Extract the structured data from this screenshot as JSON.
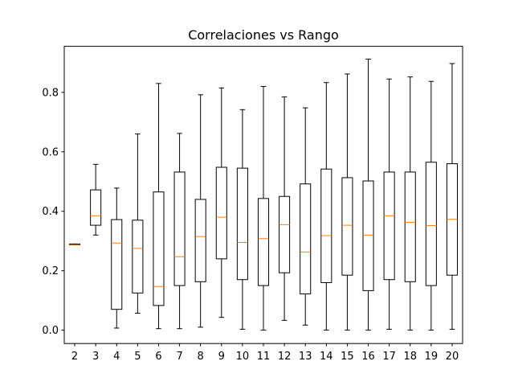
{
  "chart_data": {
    "type": "box",
    "title": "Correlaciones vs Rango",
    "xlabel": "",
    "ylabel": "",
    "ylim": [
      -0.045,
      0.955
    ],
    "yticks": [
      0.0,
      0.2,
      0.4,
      0.6,
      0.8
    ],
    "ytick_labels": [
      "0.0",
      "0.2",
      "0.4",
      "0.6",
      "0.8"
    ],
    "grid": false,
    "legend": "none",
    "colors": {
      "box": "#000000",
      "median": "#ff7f0e",
      "background": "#ffffff"
    },
    "categories": [
      "2",
      "3",
      "4",
      "5",
      "6",
      "7",
      "8",
      "9",
      "10",
      "11",
      "12",
      "13",
      "14",
      "15",
      "16",
      "17",
      "18",
      "19",
      "20"
    ],
    "boxes": [
      {
        "category": "2",
        "whislo": 0.287,
        "q1": 0.287,
        "med": 0.288,
        "q3": 0.29,
        "whishi": 0.29
      },
      {
        "category": "3",
        "whislo": 0.32,
        "q1": 0.353,
        "med": 0.385,
        "q3": 0.472,
        "whishi": 0.558
      },
      {
        "category": "4",
        "whislo": 0.007,
        "q1": 0.07,
        "med": 0.293,
        "q3": 0.372,
        "whishi": 0.478
      },
      {
        "category": "5",
        "whislo": 0.057,
        "q1": 0.125,
        "med": 0.275,
        "q3": 0.37,
        "whishi": 0.66
      },
      {
        "category": "6",
        "whislo": 0.005,
        "q1": 0.083,
        "med": 0.147,
        "q3": 0.465,
        "whishi": 0.83
      },
      {
        "category": "7",
        "whislo": 0.005,
        "q1": 0.15,
        "med": 0.247,
        "q3": 0.532,
        "whishi": 0.662
      },
      {
        "category": "8",
        "whislo": 0.01,
        "q1": 0.163,
        "med": 0.315,
        "q3": 0.44,
        "whishi": 0.792
      },
      {
        "category": "9",
        "whislo": 0.043,
        "q1": 0.24,
        "med": 0.38,
        "q3": 0.548,
        "whishi": 0.815
      },
      {
        "category": "10",
        "whislo": 0.003,
        "q1": 0.17,
        "med": 0.295,
        "q3": 0.545,
        "whishi": 0.742
      },
      {
        "category": "11",
        "whislo": 0.0,
        "q1": 0.15,
        "med": 0.308,
        "q3": 0.443,
        "whishi": 0.82
      },
      {
        "category": "12",
        "whislo": 0.033,
        "q1": 0.193,
        "med": 0.355,
        "q3": 0.45,
        "whishi": 0.785
      },
      {
        "category": "13",
        "whislo": 0.017,
        "q1": 0.122,
        "med": 0.263,
        "q3": 0.492,
        "whishi": 0.748
      },
      {
        "category": "14",
        "whislo": 0.0,
        "q1": 0.16,
        "med": 0.318,
        "q3": 0.542,
        "whishi": 0.833
      },
      {
        "category": "15",
        "whislo": 0.0,
        "q1": 0.185,
        "med": 0.353,
        "q3": 0.513,
        "whishi": 0.862
      },
      {
        "category": "16",
        "whislo": 0.0,
        "q1": 0.133,
        "med": 0.32,
        "q3": 0.502,
        "whishi": 0.912
      },
      {
        "category": "17",
        "whislo": 0.003,
        "q1": 0.17,
        "med": 0.385,
        "q3": 0.532,
        "whishi": 0.845
      },
      {
        "category": "18",
        "whislo": 0.0,
        "q1": 0.163,
        "med": 0.363,
        "q3": 0.532,
        "whishi": 0.852
      },
      {
        "category": "19",
        "whislo": 0.0,
        "q1": 0.15,
        "med": 0.352,
        "q3": 0.565,
        "whishi": 0.837
      },
      {
        "category": "20",
        "whislo": 0.003,
        "q1": 0.185,
        "med": 0.373,
        "q3": 0.56,
        "whishi": 0.897
      }
    ]
  }
}
